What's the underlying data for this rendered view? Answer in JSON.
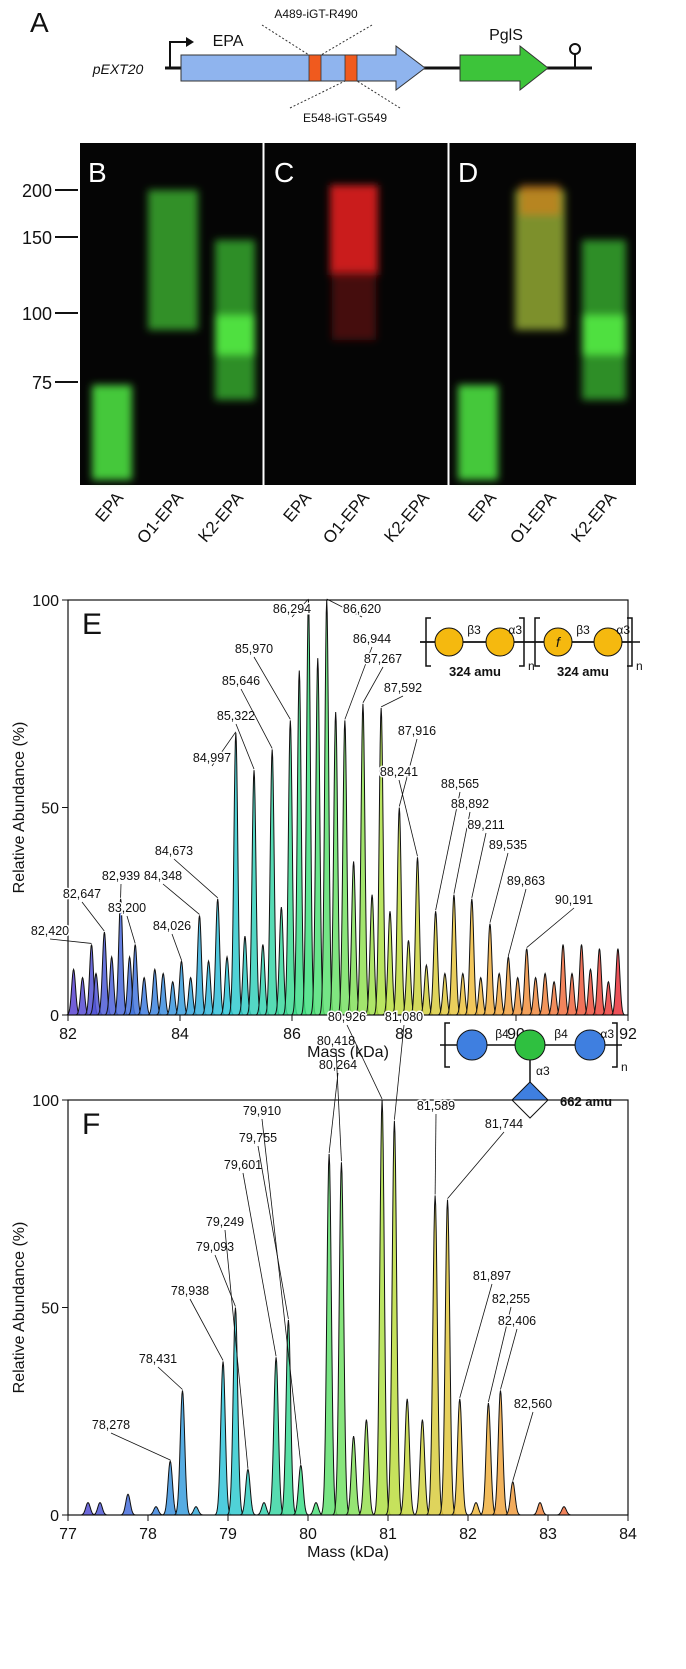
{
  "panel_a": {
    "letter": "A",
    "plasmid": "pEXT20",
    "gene1": "EPA",
    "site1": "A489-iGT-R490",
    "site2": "E548-iGT-G549",
    "gene2": "PglS"
  },
  "gels": {
    "letters": [
      "B",
      "C",
      "D"
    ],
    "markers": [
      "200",
      "150",
      "100",
      "75"
    ],
    "lanes": [
      "EPA",
      "O1-EPA",
      "K2-EPA"
    ]
  },
  "chart_data": [
    {
      "type": "area",
      "panel": "E",
      "xlabel": "Mass (kDa)",
      "ylabel": "Relative Abundance (%)",
      "xlim": [
        82,
        92
      ],
      "ylim": [
        0,
        100
      ],
      "xticks": [
        82,
        84,
        86,
        88,
        90,
        92
      ],
      "yticks": [
        0,
        50,
        100
      ],
      "colors": [
        "#5b3fd0",
        "#3f7fe0",
        "#2fc8d8",
        "#40e080",
        "#b8e040",
        "#f0c040",
        "#f08040",
        "#e8283a"
      ],
      "line_color": "#111111",
      "x": [
        82.1,
        82.26,
        82.42,
        82.5,
        82.65,
        82.78,
        82.94,
        83.1,
        83.2,
        83.36,
        83.55,
        83.7,
        83.87,
        84.026,
        84.19,
        84.348,
        84.51,
        84.673,
        84.84,
        84.997,
        85.16,
        85.322,
        85.48,
        85.646,
        85.81,
        85.97,
        86.13,
        86.294,
        86.46,
        86.62,
        86.78,
        86.944,
        87.1,
        87.267,
        87.43,
        87.592,
        87.75,
        87.916,
        88.08,
        88.241,
        88.4,
        88.565,
        88.73,
        88.892,
        89.05,
        89.211,
        89.37,
        89.535,
        89.7,
        89.863,
        90.03,
        90.191,
        90.35,
        90.52,
        90.68,
        90.84,
        91.0,
        91.17,
        91.33,
        91.49,
        91.65,
        91.82
      ],
      "values": [
        11,
        9,
        17,
        10,
        20,
        14,
        28,
        14,
        17,
        9,
        11,
        10,
        8,
        13,
        9,
        24,
        13,
        28,
        14,
        68,
        19,
        59,
        17,
        64,
        26,
        71,
        83,
        100,
        86,
        100,
        73,
        71,
        37,
        75,
        29,
        74,
        25,
        50,
        18,
        38,
        12,
        25,
        10,
        29,
        10,
        28,
        9,
        22,
        10,
        14,
        9,
        16,
        9,
        10,
        8,
        17,
        10,
        17,
        11,
        16,
        8,
        16
      ],
      "annotations": [
        {
          "text": "82,420",
          "x": 82.42,
          "y": 17
        },
        {
          "text": "82,647",
          "x": 82.647,
          "y": 20
        },
        {
          "text": "82,939",
          "x": 82.939,
          "y": 28
        },
        {
          "text": "83,200",
          "x": 83.2,
          "y": 17
        },
        {
          "text": "84,026",
          "x": 84.026,
          "y": 13
        },
        {
          "text": "84,348",
          "x": 84.348,
          "y": 24
        },
        {
          "text": "84,673",
          "x": 84.673,
          "y": 28
        },
        {
          "text": "84,997",
          "x": 84.997,
          "y": 68
        },
        {
          "text": "85,322",
          "x": 85.322,
          "y": 59
        },
        {
          "text": "85,646",
          "x": 85.646,
          "y": 64
        },
        {
          "text": "85,970",
          "x": 85.97,
          "y": 71
        },
        {
          "text": "86,294",
          "x": 86.294,
          "y": 100
        },
        {
          "text": "86,620",
          "x": 86.62,
          "y": 100
        },
        {
          "text": "86,944",
          "x": 86.944,
          "y": 71
        },
        {
          "text": "87,267",
          "x": 87.267,
          "y": 75
        },
        {
          "text": "87,592",
          "x": 87.592,
          "y": 74
        },
        {
          "text": "87,916",
          "x": 87.916,
          "y": 50
        },
        {
          "text": "88,241",
          "x": 88.241,
          "y": 38
        },
        {
          "text": "88,565",
          "x": 88.565,
          "y": 25
        },
        {
          "text": "88,892",
          "x": 88.892,
          "y": 29
        },
        {
          "text": "89,211",
          "x": 89.211,
          "y": 28
        },
        {
          "text": "89,535",
          "x": 89.535,
          "y": 22
        },
        {
          "text": "89,863",
          "x": 89.863,
          "y": 14
        },
        {
          "text": "90,191",
          "x": 90.191,
          "y": 16
        }
      ],
      "glycan": {
        "links": [
          "β3",
          "α3",
          "β3",
          "α3"
        ],
        "repeat": "n",
        "modifier": "f",
        "masses": [
          "324 amu",
          "324 amu"
        ]
      }
    },
    {
      "type": "area",
      "panel": "F",
      "xlabel": "Mass (kDa)",
      "ylabel": "Relative Abundance (%)",
      "xlim": [
        77,
        84
      ],
      "ylim": [
        0,
        100
      ],
      "xticks": [
        77,
        78,
        79,
        80,
        81,
        82,
        83,
        84
      ],
      "yticks": [
        0,
        50,
        100
      ],
      "colors": [
        "#5b3fd0",
        "#3f7fe0",
        "#2fc8d8",
        "#40e080",
        "#b8e040",
        "#f0c040",
        "#f08040",
        "#e8283a"
      ],
      "line_color": "#111111",
      "x": [
        77.25,
        77.4,
        77.75,
        78.1,
        78.278,
        78.431,
        78.6,
        78.938,
        79.093,
        79.249,
        79.45,
        79.601,
        79.755,
        79.91,
        80.1,
        80.264,
        80.418,
        80.57,
        80.73,
        80.926,
        81.08,
        81.24,
        81.43,
        81.589,
        81.744,
        81.897,
        82.1,
        82.255,
        82.406,
        82.56,
        82.9,
        83.2
      ],
      "values": [
        3,
        3,
        5,
        2,
        13,
        30,
        2,
        37,
        50,
        11,
        3,
        38,
        47,
        12,
        3,
        87,
        85,
        19,
        23,
        100,
        95,
        28,
        23,
        77,
        76,
        28,
        3,
        27,
        30,
        8,
        3,
        2
      ],
      "annotations": [
        {
          "text": "78,278",
          "x": 78.278,
          "y": 13
        },
        {
          "text": "78,431",
          "x": 78.431,
          "y": 30
        },
        {
          "text": "78,938",
          "x": 78.938,
          "y": 37
        },
        {
          "text": "79,093",
          "x": 79.093,
          "y": 50
        },
        {
          "text": "79,249",
          "x": 79.249,
          "y": 11
        },
        {
          "text": "79,601",
          "x": 79.601,
          "y": 38
        },
        {
          "text": "79,755",
          "x": 79.755,
          "y": 47
        },
        {
          "text": "79,910",
          "x": 79.91,
          "y": 12
        },
        {
          "text": "80,264",
          "x": 80.264,
          "y": 87
        },
        {
          "text": "80,418",
          "x": 80.418,
          "y": 85
        },
        {
          "text": "80,926",
          "x": 80.926,
          "y": 100
        },
        {
          "text": "81,080",
          "x": 81.08,
          "y": 95
        },
        {
          "text": "81,589",
          "x": 81.589,
          "y": 77
        },
        {
          "text": "81,744",
          "x": 81.744,
          "y": 76
        },
        {
          "text": "81,897",
          "x": 81.897,
          "y": 28
        },
        {
          "text": "82,255",
          "x": 82.255,
          "y": 27
        },
        {
          "text": "82,406",
          "x": 82.406,
          "y": 30
        },
        {
          "text": "82,560",
          "x": 82.56,
          "y": 8
        }
      ],
      "glycan": {
        "links": [
          "β4",
          "β4",
          "α3",
          "α3"
        ],
        "repeat": "n",
        "masses": [
          "662 amu"
        ]
      }
    }
  ]
}
